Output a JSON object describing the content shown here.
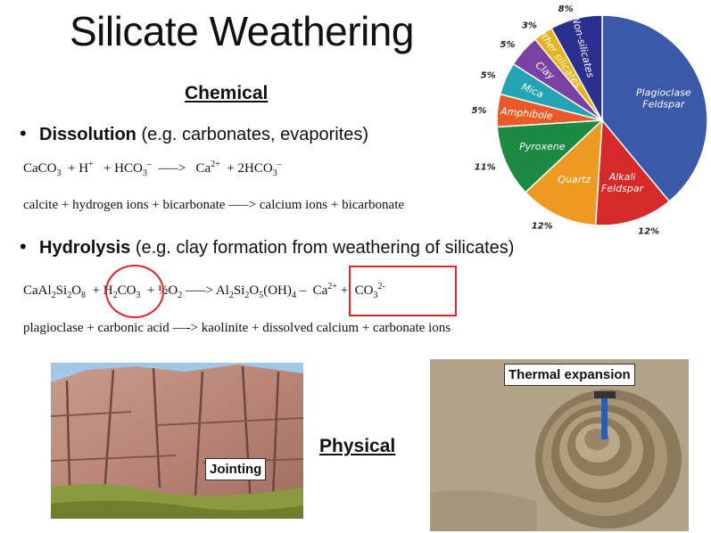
{
  "title": "Silicate Weathering",
  "chemical": {
    "heading": "Chemical",
    "dissolution": {
      "term": "Dissolution",
      "desc": " (e.g. carbonates, evaporites)",
      "eq_html": "CaCO<sub>3</sub> &nbsp;+ H<sup>+</sup> &nbsp;&nbsp;+ HCO<sub>3</sub><sup>–</sup> &nbsp;—–> &nbsp;&nbsp;Ca<sup>2+</sup> &nbsp;+ 2HCO<sub>3</sub><sup>–</sup>",
      "words": "calcite + hydrogen ions + bicarbonate —–> calcium ions + bicarbonate"
    },
    "hydrolysis": {
      "term": "Hydrolysis",
      "desc": " (e.g. clay formation from weathering of silicates)",
      "eq_html": "CaAl<sub>2</sub>Si<sub>2</sub>O<sub>8</sub> &nbsp;+ H<sub>2</sub>CO<sub>3</sub> &nbsp;+ ½O<sub>2</sub> —–> Al<sub>2</sub>Si<sub>2</sub>O<sub>5</sub>(OH)<sub>4</sub> – &nbsp;Ca<sup>2+</sup> + &nbsp;CO<sub>3</sub><sup>2-</sup>",
      "words": "plagioclase + carbonic acid —-> kaolinite + dissolved calcium + carbonate ions"
    }
  },
  "physical": {
    "heading": "Physical",
    "jointing_label": "Jointing",
    "thermal_label": "Thermal expansion"
  },
  "colors": {
    "annotation_red": "#e0252b"
  },
  "chart_data": {
    "type": "pie",
    "title": "",
    "slices": [
      {
        "label": "Plagioclase Feldspar",
        "value": 39,
        "pct_label": "39%",
        "color": "#3a59a8"
      },
      {
        "label": "Alkali Feldspar",
        "value": 12,
        "pct_label": "12%",
        "color": "#d6292a"
      },
      {
        "label": "Quartz",
        "value": 12,
        "pct_label": "12%",
        "color": "#ee9a22"
      },
      {
        "label": "Pyroxene",
        "value": 11,
        "pct_label": "11%",
        "color": "#1d8a44"
      },
      {
        "label": "Amphibole",
        "value": 5,
        "pct_label": "5%",
        "color": "#e85a28"
      },
      {
        "label": "Mica",
        "value": 5,
        "pct_label": "5%",
        "color": "#23a4b4"
      },
      {
        "label": "Clay",
        "value": 5,
        "pct_label": "5%",
        "color": "#7a41a5"
      },
      {
        "label": "Other silicates",
        "value": 3,
        "pct_label": "3%",
        "color": "#e6b319"
      },
      {
        "label": "Non-silicates",
        "value": 8,
        "pct_label": "8%",
        "color": "#2b2f8f"
      }
    ]
  }
}
